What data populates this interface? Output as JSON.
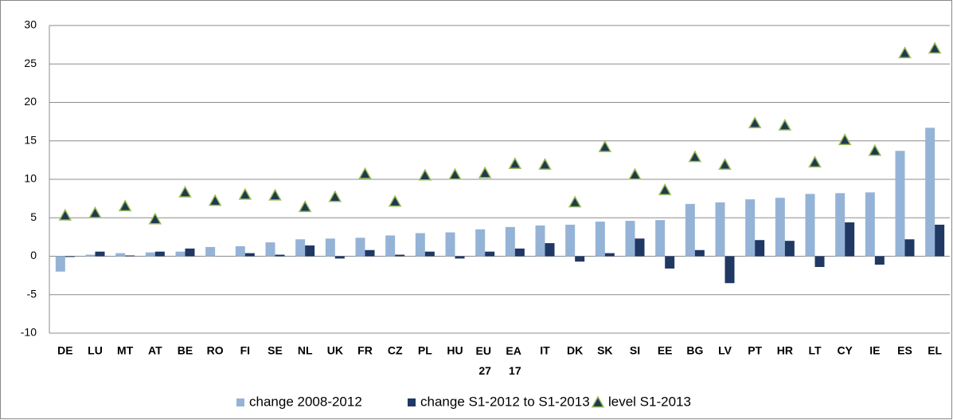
{
  "chart_data": {
    "type": "bar",
    "categories": [
      "DE",
      "LU",
      "MT",
      "AT",
      "BE",
      "RO",
      "FI",
      "SE",
      "NL",
      "UK",
      "FR",
      "CZ",
      "PL",
      "HU",
      "EU 27",
      "EA 17",
      "IT",
      "DK",
      "SK",
      "SI",
      "EE",
      "BG",
      "LV",
      "PT",
      "HR",
      "LT",
      "CY",
      "IE",
      "ES",
      "EL"
    ],
    "series": [
      {
        "name": "change 2008-2012",
        "type": "bar",
        "color": "#95b3d7",
        "values": [
          -2.0,
          0.2,
          0.4,
          0.5,
          0.6,
          1.2,
          1.3,
          1.8,
          2.2,
          2.3,
          2.4,
          2.7,
          3.0,
          3.1,
          3.5,
          3.8,
          4.0,
          4.1,
          4.5,
          4.6,
          4.7,
          6.8,
          7.0,
          7.4,
          7.6,
          8.1,
          8.2,
          8.3,
          13.7,
          16.7
        ]
      },
      {
        "name": "change S1-2012 to S1-2013",
        "type": "bar",
        "color": "#1f3864",
        "values": [
          -0.1,
          0.6,
          0.1,
          0.6,
          1.0,
          0,
          0.4,
          0.2,
          1.4,
          -0.3,
          0.8,
          0.2,
          0.6,
          -0.3,
          0.6,
          1.0,
          1.7,
          -0.7,
          0.4,
          2.3,
          -1.6,
          0.8,
          -3.5,
          2.1,
          2.0,
          -1.4,
          4.4,
          -1.1,
          2.2,
          4.1
        ]
      },
      {
        "name": "level S1-2013",
        "type": "scatter",
        "color": "#1f3a4f",
        "edge_color": "#9bbb59",
        "values": [
          5.3,
          5.6,
          6.5,
          4.8,
          8.3,
          7.2,
          8.0,
          7.9,
          6.4,
          7.7,
          10.7,
          7.1,
          10.5,
          10.6,
          10.8,
          12.0,
          11.9,
          7.0,
          14.2,
          10.6,
          8.6,
          12.9,
          11.9,
          17.3,
          17.0,
          12.2,
          15.1,
          13.7,
          26.4,
          27.0
        ]
      }
    ],
    "ylim": [
      -10,
      30
    ],
    "yticks": [
      -10,
      -5,
      0,
      5,
      10,
      15,
      20,
      25,
      30
    ],
    "grid": true,
    "legend": "bottom"
  }
}
